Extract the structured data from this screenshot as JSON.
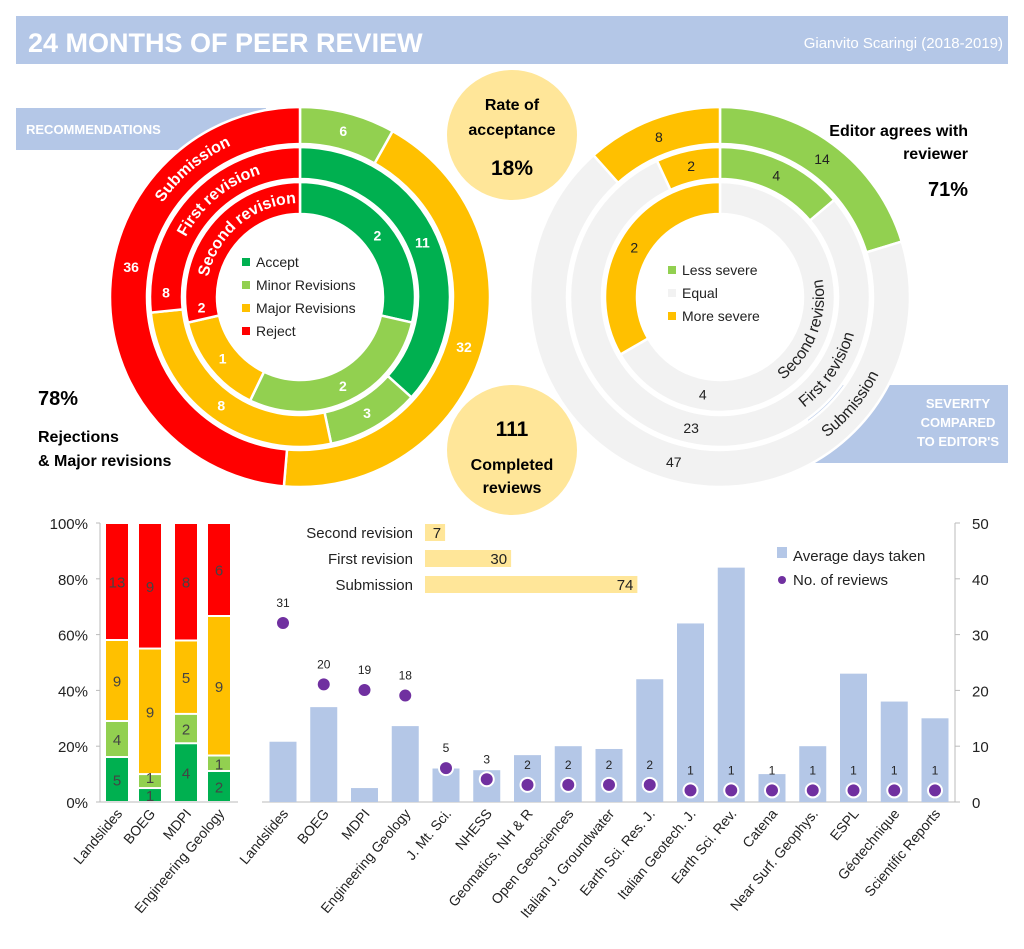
{
  "header": {
    "title": "24 MONTHS OF PEER REVIEW",
    "author": "Gianvito Scaringi (2018-2019)"
  },
  "colors": {
    "accept": "#00b050",
    "minor": "#92d050",
    "major": "#ffc000",
    "reject": "#ff0000",
    "equal": "#f2f2f2",
    "bar": "#b4c7e7",
    "dot": "#7030a0",
    "highlight": "#ffe699",
    "banner": "#b4c7e7"
  },
  "recommendations": {
    "banner": "RECOMMENDATIONS",
    "rejection_pct": "78%",
    "rejection_label_1": "Rejections",
    "rejection_label_2": "& Major revisions"
  },
  "acceptance": {
    "label_1": "Rate of",
    "label_2": "acceptance",
    "value": "18%"
  },
  "completed": {
    "value": "111",
    "label_1": "Completed",
    "label_2": "reviews"
  },
  "severity": {
    "banner_1": "SEVERITY",
    "banner_2": "COMPARED",
    "banner_3": "TO EDITOR'S",
    "agree_1": "Editor agrees with",
    "agree_2": "reviewer",
    "agree_pct": "71%"
  },
  "chart_data": [
    {
      "type": "donut",
      "legend": [
        "Accept",
        "Minor Revisions",
        "Major Revisions",
        "Reject"
      ],
      "rings": [
        {
          "name": "Submission",
          "values": [
            0,
            6,
            32,
            36
          ]
        },
        {
          "name": "First revision",
          "values": [
            11,
            3,
            8,
            8
          ]
        },
        {
          "name": "Second revision",
          "values": [
            2,
            2,
            1,
            2
          ]
        }
      ]
    },
    {
      "type": "donut",
      "legend": [
        "Less severe",
        "Equal",
        "More severe"
      ],
      "rings": [
        {
          "name": "Submission",
          "values": [
            14,
            47,
            8
          ]
        },
        {
          "name": "First revision",
          "values": [
            4,
            23,
            2
          ]
        },
        {
          "name": "Second revision",
          "values": [
            0,
            4,
            2
          ]
        }
      ]
    },
    {
      "type": "bar",
      "orientation": "horizontal",
      "categories": [
        "Second revision",
        "First revision",
        "Submission"
      ],
      "values": [
        7,
        30,
        74
      ]
    },
    {
      "type": "bar",
      "stacked": "percent",
      "categories": [
        "Landslides",
        "BOEG",
        "MDPI",
        "Engineering Geology"
      ],
      "series": [
        {
          "key": "accept",
          "values": [
            5,
            1,
            4,
            2
          ]
        },
        {
          "key": "minor",
          "values": [
            4,
            1,
            2,
            1
          ]
        },
        {
          "key": "major",
          "values": [
            9,
            9,
            5,
            9
          ]
        },
        {
          "key": "reject",
          "values": [
            13,
            9,
            8,
            6
          ]
        }
      ],
      "yticks": [
        "0%",
        "20%",
        "40%",
        "60%",
        "80%",
        "100%"
      ],
      "ylim": [
        0,
        100
      ]
    },
    {
      "type": "bar+scatter",
      "categories": [
        "Landslides",
        "BOEG",
        "MDPI",
        "Engineering Geology",
        "J. Mt. Sci.",
        "NHESS",
        "Geomatics, NH & R",
        "Open Geosciences",
        "Italian J. Groundwater",
        "Earth Sci. Res. J.",
        "Italian Geotech. J.",
        "Earth Sci. Rev.",
        "Catena",
        "Near Surf. Geophys.",
        "ESPL",
        "Géotechnique",
        "Scientific Reports"
      ],
      "series": [
        {
          "name": "Average days taken",
          "type": "bar",
          "values": [
            10.8,
            17,
            2.5,
            13.6,
            6,
            5.7,
            8.4,
            10,
            9.5,
            22,
            32,
            42,
            5,
            10,
            23,
            18,
            15
          ]
        },
        {
          "name": "No. of reviews",
          "type": "scatter",
          "values": [
            31,
            20,
            19,
            18,
            5,
            3,
            2,
            2,
            2,
            2,
            1,
            1,
            1,
            1,
            1,
            1,
            1
          ]
        }
      ],
      "yticks": [
        "0",
        "10",
        "20",
        "30",
        "40",
        "50"
      ],
      "ylim": [
        0,
        50
      ],
      "legend_position": "top-right"
    }
  ]
}
